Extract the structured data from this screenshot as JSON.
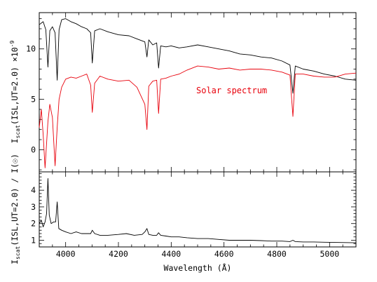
{
  "chart_data": [
    {
      "type": "line",
      "panel": "top",
      "xlabel": "",
      "ylabel_main": "I",
      "ylabel_sub": "scat",
      "ylabel_rest": "(ISL,UT=2.0) ×10",
      "ylabel_sup": "-9",
      "xlim": [
        3900,
        5100
      ],
      "ylim": [
        -2.2,
        13.6
      ],
      "yticks": [
        "0",
        "5",
        "10"
      ],
      "annotation": "Solar spectrum",
      "colors": {
        "scattered": "#000000",
        "solar": "#e8000b"
      },
      "series": [
        {
          "key": "scattered",
          "x": [
            3900,
            3915,
            3925,
            3933,
            3940,
            3950,
            3960,
            3968,
            3975,
            3985,
            4000,
            4020,
            4040,
            4060,
            4080,
            4095,
            4101,
            4110,
            4130,
            4160,
            4200,
            4240,
            4270,
            4300,
            4308,
            4315,
            4330,
            4345,
            4352,
            4360,
            4380,
            4400,
            4430,
            4460,
            4500,
            4540,
            4580,
            4620,
            4660,
            4700,
            4740,
            4780,
            4820,
            4850,
            4861,
            4870,
            4900,
            4940,
            4980,
            5020,
            5060,
            5100
          ],
          "values": [
            12.4,
            12.7,
            11.9,
            8.2,
            11.8,
            12.2,
            11.6,
            6.9,
            11.9,
            12.9,
            13.0,
            12.7,
            12.5,
            12.2,
            12.0,
            11.6,
            8.6,
            11.8,
            12.0,
            11.7,
            11.4,
            11.3,
            11.0,
            10.7,
            9.2,
            10.9,
            10.4,
            10.6,
            8.1,
            10.3,
            10.2,
            10.3,
            10.1,
            10.2,
            10.4,
            10.2,
            10.0,
            9.8,
            9.5,
            9.4,
            9.2,
            9.1,
            8.8,
            8.4,
            5.6,
            8.3,
            8.0,
            7.8,
            7.5,
            7.3,
            7.0,
            6.9
          ]
        },
        {
          "key": "solar",
          "x": [
            3900,
            3908,
            3915,
            3922,
            3933,
            3940,
            3950,
            3960,
            3968,
            3975,
            3985,
            4000,
            4020,
            4040,
            4060,
            4080,
            4095,
            4101,
            4110,
            4130,
            4160,
            4200,
            4240,
            4270,
            4300,
            4308,
            4315,
            4330,
            4345,
            4352,
            4360,
            4380,
            4400,
            4430,
            4460,
            4500,
            4540,
            4580,
            4620,
            4660,
            4700,
            4740,
            4780,
            4820,
            4850,
            4861,
            4870,
            4900,
            4940,
            4980,
            5020,
            5060,
            5100
          ],
          "values": [
            2.2,
            4.0,
            1.5,
            -1.8,
            2.8,
            4.5,
            3.2,
            -1.6,
            2.2,
            5.0,
            6.2,
            7.0,
            7.2,
            7.1,
            7.3,
            7.5,
            6.4,
            3.7,
            6.6,
            7.3,
            7.0,
            6.8,
            6.9,
            6.2,
            4.5,
            2.0,
            6.3,
            6.8,
            6.9,
            3.6,
            7.0,
            7.1,
            7.3,
            7.5,
            7.9,
            8.3,
            8.2,
            8.0,
            8.1,
            7.9,
            8.0,
            8.0,
            7.9,
            7.7,
            7.4,
            3.3,
            7.5,
            7.5,
            7.3,
            7.2,
            7.2,
            7.5,
            7.6
          ]
        }
      ]
    },
    {
      "type": "line",
      "panel": "bottom",
      "xlabel": "Wavelength (Å)",
      "ylabel": "I",
      "ylabel_sub": "scat",
      "ylabel_rest": "(ISL,UT=2.0) / I(☉)",
      "xlim": [
        3900,
        5100
      ],
      "ylim": [
        0.6,
        5.1
      ],
      "xticks": [
        "4000",
        "4200",
        "4400",
        "4600",
        "4800",
        "5000"
      ],
      "yticks": [
        "1",
        "2",
        "3",
        "4"
      ],
      "colors": {
        "ratio": "#000000"
      },
      "series": [
        {
          "key": "ratio",
          "x": [
            3900,
            3908,
            3915,
            3922,
            3928,
            3933,
            3938,
            3945,
            3955,
            3962,
            3968,
            3974,
            3985,
            4000,
            4020,
            4040,
            4060,
            4080,
            4095,
            4101,
            4110,
            4130,
            4160,
            4200,
            4230,
            4260,
            4290,
            4300,
            4308,
            4315,
            4330,
            4345,
            4352,
            4360,
            4380,
            4400,
            4430,
            4460,
            4500,
            4540,
            4580,
            4620,
            4660,
            4700,
            4740,
            4780,
            4820,
            4850,
            4861,
            4870,
            4900,
            4940,
            4980,
            5020,
            5060,
            5100
          ],
          "values": [
            2.0,
            2.2,
            1.8,
            2.1,
            2.6,
            4.7,
            2.5,
            2.0,
            2.1,
            2.1,
            3.3,
            1.7,
            1.6,
            1.5,
            1.4,
            1.5,
            1.4,
            1.4,
            1.4,
            1.6,
            1.4,
            1.3,
            1.3,
            1.35,
            1.4,
            1.3,
            1.35,
            1.5,
            1.7,
            1.35,
            1.3,
            1.3,
            1.45,
            1.3,
            1.25,
            1.2,
            1.2,
            1.15,
            1.1,
            1.1,
            1.05,
            1.0,
            1.0,
            1.0,
            0.98,
            0.95,
            0.95,
            0.92,
            1.0,
            0.92,
            0.9,
            0.9,
            0.88,
            0.87,
            0.86,
            0.85
          ]
        }
      ]
    }
  ]
}
